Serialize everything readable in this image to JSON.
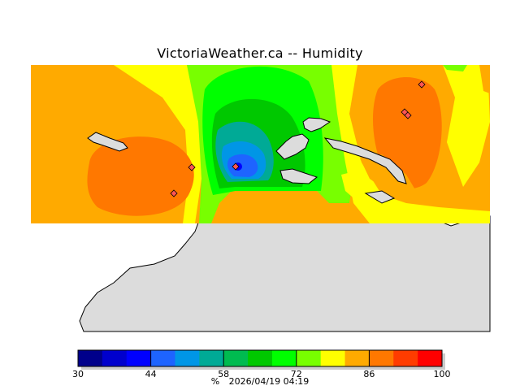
{
  "title": "VictoriaWeather.ca -- Humidity",
  "legend": {
    "min": 30,
    "max": 100,
    "ticks": [
      "30",
      "44",
      "58",
      "72",
      "86",
      "100"
    ],
    "colors": [
      "#00008b",
      "#0000cd",
      "#0000ff",
      "#1e64ff",
      "#0096e6",
      "#00aa96",
      "#00bb50",
      "#00c800",
      "#00ff00",
      "#78ff00",
      "#ffff00",
      "#ffaa00",
      "#ff7800",
      "#ff3c00",
      "#ff0000"
    ]
  },
  "footer": {
    "unit": "%",
    "timestamp": "2026/04/19 04:19"
  },
  "colors": {
    "land": "#dcdcdc",
    "coast": "#000000",
    "station": "#ff5555"
  }
}
